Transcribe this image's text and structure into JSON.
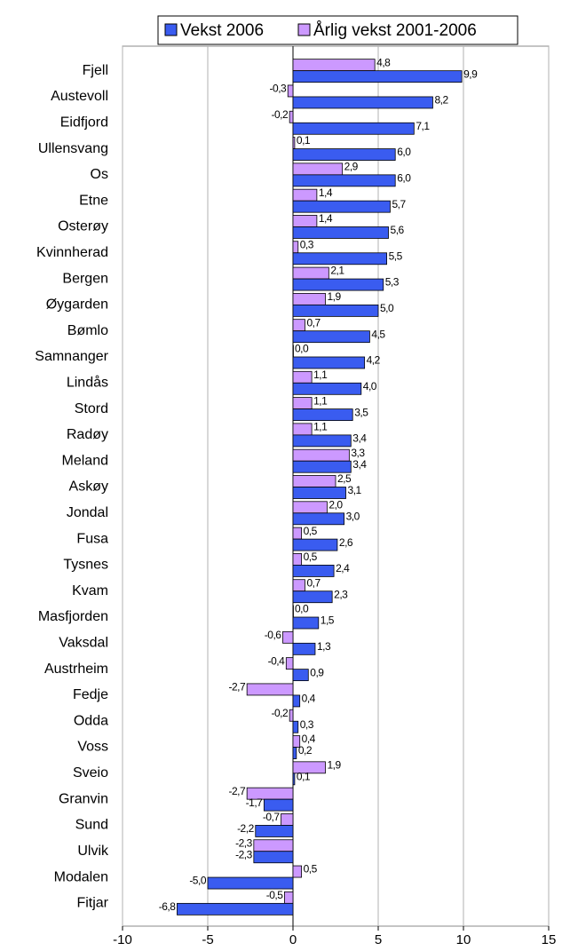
{
  "chart_data": {
    "type": "hbar",
    "categories": [
      "Fjell",
      "Austevoll",
      "Eidfjord",
      "Ullensvang",
      "Os",
      "Etne",
      "Osterøy",
      "Kvinnherad",
      "Bergen",
      "Øygarden",
      "Bømlo",
      "Samnanger",
      "Lindås",
      "Stord",
      "Radøy",
      "Meland",
      "Askøy",
      "Jondal",
      "Fusa",
      "Tysnes",
      "Kvam",
      "Masfjorden",
      "Vaksdal",
      "Austrheim",
      "Fedje",
      "Odda",
      "Voss",
      "Sveio",
      "Granvin",
      "Sund",
      "Ulvik",
      "Modalen",
      "Fitjar"
    ],
    "series": [
      {
        "name": "Vekst 2006",
        "color": "#3a5cf0",
        "values": [
          9.9,
          8.2,
          7.1,
          6.0,
          6.0,
          5.7,
          5.6,
          5.5,
          5.3,
          5.0,
          4.5,
          4.2,
          4.0,
          3.5,
          3.4,
          3.4,
          3.1,
          3.0,
          2.6,
          2.4,
          2.3,
          1.5,
          1.3,
          0.9,
          0.4,
          0.3,
          0.2,
          0.1,
          -1.7,
          -2.2,
          -2.3,
          -5.0,
          -6.8
        ],
        "value_labels": [
          "9,9",
          "8,2",
          "7,1",
          "6,0",
          "6,0",
          "5,7",
          "5,6",
          "5,5",
          "5,3",
          "5,0",
          "4,5",
          "4,2",
          "4,0",
          "3,5",
          "3,4",
          "3,4",
          "3,1",
          "3,0",
          "2,6",
          "2,4",
          "2,3",
          "1,5",
          "1,3",
          "0,9",
          "0,4",
          "0,3",
          "0,2",
          "0,1",
          "-1,7",
          "-2,2",
          "-2,3",
          "-5,0",
          "-6,8"
        ]
      },
      {
        "name": "Årlig vekst 2001-2006",
        "color": "#cc99ff",
        "values": [
          4.8,
          -0.3,
          -0.2,
          0.1,
          2.9,
          1.4,
          1.4,
          0.3,
          2.1,
          1.9,
          0.7,
          0.0,
          1.1,
          1.1,
          1.1,
          3.3,
          2.5,
          2.0,
          0.5,
          0.5,
          0.7,
          0.0,
          -0.6,
          -0.4,
          -2.7,
          -0.2,
          0.4,
          1.9,
          -2.7,
          -0.7,
          -2.3,
          0.5,
          -0.5
        ],
        "value_labels": [
          "4,8",
          "-0,3",
          "-0,2",
          "0,1",
          "2,9",
          "1,4",
          "1,4",
          "0,3",
          "2,1",
          "1,9",
          "0,7",
          "0,0",
          "1,1",
          "1,1",
          "1,1",
          "3,3",
          "2,5",
          "2,0",
          "0,5",
          "0,5",
          "0,7",
          "0,0",
          "-0,6",
          "-0,4",
          "-2,7",
          "-0,2",
          "0,4",
          "1,9",
          "-2,7",
          "-0,7",
          "-2,3",
          "0,5",
          "-0,5"
        ]
      }
    ],
    "xlim": [
      -10,
      15
    ],
    "xticks": [
      -10,
      -5,
      0,
      5,
      10,
      15
    ],
    "grid": true,
    "legend": "top"
  }
}
